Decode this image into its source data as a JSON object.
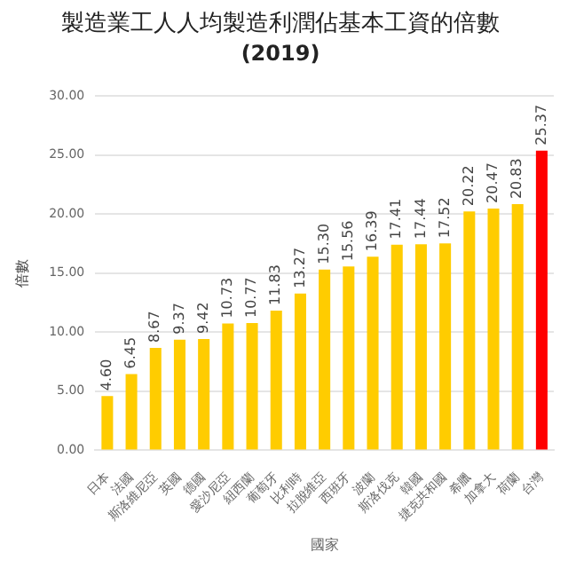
{
  "chart_data": {
    "type": "bar",
    "title": "製造業工人人均製造利潤佔基本工資的倍數",
    "subtitle": "(2019)",
    "xlabel": "國家",
    "ylabel": "倍數",
    "categories": [
      "日本",
      "法國",
      "斯洛維尼亞",
      "英國",
      "德國",
      "愛沙尼亞",
      "紐西蘭",
      "葡萄牙",
      "比利時",
      "拉脫維亞",
      "西班牙",
      "波蘭",
      "斯洛伐克",
      "韓國",
      "捷克共和國",
      "希臘",
      "加拿大",
      "荷蘭",
      "台灣"
    ],
    "values": [
      4.6,
      6.45,
      8.67,
      9.37,
      9.42,
      10.73,
      10.77,
      11.83,
      13.27,
      15.3,
      15.56,
      16.39,
      17.41,
      17.44,
      17.52,
      20.22,
      20.47,
      20.83,
      25.37
    ],
    "colors": [
      "#ffcc00",
      "#ffcc00",
      "#ffcc00",
      "#ffcc00",
      "#ffcc00",
      "#ffcc00",
      "#ffcc00",
      "#ffcc00",
      "#ffcc00",
      "#ffcc00",
      "#ffcc00",
      "#ffcc00",
      "#ffcc00",
      "#ffcc00",
      "#ffcc00",
      "#ffcc00",
      "#ffcc00",
      "#ffcc00",
      "#ff0000"
    ],
    "value_labels": [
      "4.60",
      "6.45",
      "8.67",
      "9.37",
      "9.42",
      "10.73",
      "10.77",
      "11.83",
      "13.27",
      "15.30",
      "15.56",
      "16.39",
      "17.41",
      "17.44",
      "17.52",
      "20.22",
      "20.47",
      "20.83",
      "25.37"
    ],
    "ylim": [
      0,
      30
    ],
    "yticks": [
      {
        "value": 0,
        "label": "0.00"
      },
      {
        "value": 5,
        "label": "5.00"
      },
      {
        "value": 10,
        "label": "10.00"
      },
      {
        "value": 15,
        "label": "15.00"
      },
      {
        "value": 20,
        "label": "20.00"
      },
      {
        "value": 25,
        "label": "25.00"
      },
      {
        "value": 30,
        "label": "30.00"
      }
    ],
    "grid": "y",
    "legend": false
  }
}
